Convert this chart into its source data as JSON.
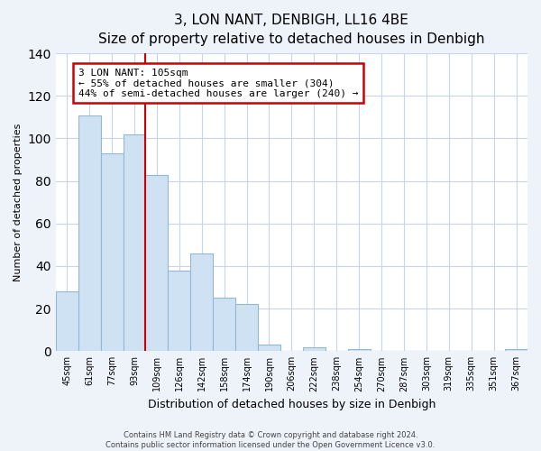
{
  "title": "3, LON NANT, DENBIGH, LL16 4BE",
  "subtitle": "Size of property relative to detached houses in Denbigh",
  "xlabel": "Distribution of detached houses by size in Denbigh",
  "ylabel": "Number of detached properties",
  "bar_labels": [
    "45sqm",
    "61sqm",
    "77sqm",
    "93sqm",
    "109sqm",
    "126sqm",
    "142sqm",
    "158sqm",
    "174sqm",
    "190sqm",
    "206sqm",
    "222sqm",
    "238sqm",
    "254sqm",
    "270sqm",
    "287sqm",
    "303sqm",
    "319sqm",
    "335sqm",
    "351sqm",
    "367sqm"
  ],
  "bar_values": [
    28,
    111,
    93,
    102,
    83,
    38,
    46,
    25,
    22,
    3,
    0,
    2,
    0,
    1,
    0,
    0,
    0,
    0,
    0,
    0,
    1
  ],
  "bar_color": "#cfe2f3",
  "bar_edge_color": "#92b8d8",
  "vline_bar_index": 4,
  "vline_color": "#cc0000",
  "ylim": [
    0,
    140
  ],
  "yticks": [
    0,
    20,
    40,
    60,
    80,
    100,
    120,
    140
  ],
  "annotation_text": "3 LON NANT: 105sqm\n← 55% of detached houses are smaller (304)\n44% of semi-detached houses are larger (240) →",
  "footer_line1": "Contains HM Land Registry data © Crown copyright and database right 2024.",
  "footer_line2": "Contains public sector information licensed under the Open Government Licence v3.0.",
  "bg_color": "#eef2f9",
  "plot_bg_color": "#ffffff",
  "grid_color": "#c8d4e8",
  "title_fontsize": 11,
  "subtitle_fontsize": 9,
  "xlabel_fontsize": 9,
  "ylabel_fontsize": 8,
  "tick_fontsize": 7,
  "annotation_fontsize": 8,
  "footer_fontsize": 6
}
